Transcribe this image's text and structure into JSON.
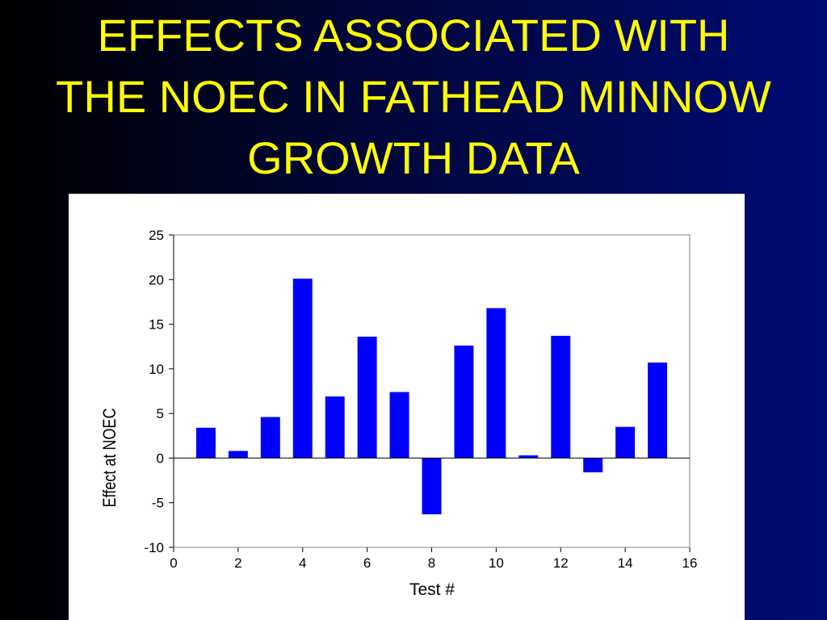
{
  "title_lines": [
    "EFFECTS ASSOCIATED WITH",
    "THE NOEC IN FATHEAD MINNOW",
    "GROWTH DATA"
  ],
  "colors": {
    "title": "#ffff00",
    "bar": "#0000ff",
    "panel": "#ffffff"
  },
  "chart_data": {
    "type": "bar",
    "title": "",
    "xlabel": "Test #",
    "ylabel": "Effect at NOEC",
    "x": [
      1,
      2,
      3,
      4,
      5,
      6,
      7,
      8,
      9,
      10,
      11,
      12,
      13,
      14,
      15
    ],
    "values": [
      3.4,
      0.8,
      4.6,
      20.1,
      6.9,
      13.6,
      7.4,
      -6.3,
      12.6,
      16.8,
      0.3,
      13.7,
      -1.6,
      3.5,
      10.7
    ],
    "xlim": [
      0,
      16
    ],
    "ylim": [
      -10,
      25
    ],
    "xticks": [
      0,
      2,
      4,
      6,
      8,
      10,
      12,
      14,
      16
    ],
    "yticks": [
      -10,
      -5,
      0,
      5,
      10,
      15,
      20,
      25
    ],
    "grid": false,
    "legend": "none"
  }
}
